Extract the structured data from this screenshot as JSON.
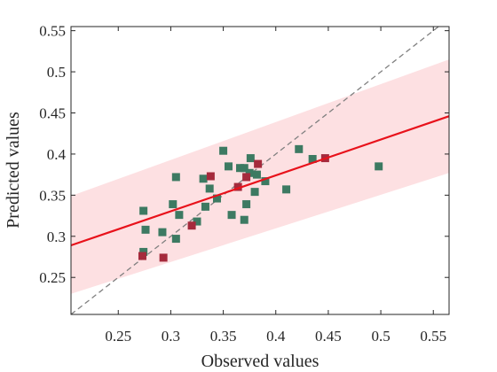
{
  "chart_data": {
    "type": "scatter",
    "title": "",
    "xlabel": "Observed values",
    "ylabel": "Predicted values",
    "xlim": [
      0.205,
      0.565
    ],
    "ylim": [
      0.205,
      0.555
    ],
    "xticks": [
      0.25,
      0.3,
      0.35,
      0.4,
      0.45,
      0.5,
      0.55
    ],
    "xtick_labels": [
      "0.25",
      "0.3",
      "0.35",
      "0.4",
      "0.45",
      "0.5",
      "0.55"
    ],
    "yticks": [
      0.25,
      0.3,
      0.35,
      0.4,
      0.45,
      0.5,
      0.55
    ],
    "ytick_labels": [
      "0.25",
      "0.3",
      "0.35",
      "0.4",
      "0.45",
      "0.5",
      "0.55"
    ],
    "grid": false,
    "legend": "none",
    "series": [
      {
        "marker": "square",
        "color": "#3d7a62",
        "points": [
          [
            0.274,
            0.331
          ],
          [
            0.274,
            0.281
          ],
          [
            0.276,
            0.308
          ],
          [
            0.292,
            0.305
          ],
          [
            0.302,
            0.339
          ],
          [
            0.305,
            0.297
          ],
          [
            0.305,
            0.372
          ],
          [
            0.308,
            0.326
          ],
          [
            0.325,
            0.318
          ],
          [
            0.331,
            0.37
          ],
          [
            0.333,
            0.336
          ],
          [
            0.337,
            0.358
          ],
          [
            0.344,
            0.346
          ],
          [
            0.35,
            0.404
          ],
          [
            0.355,
            0.385
          ],
          [
            0.358,
            0.326
          ],
          [
            0.366,
            0.383
          ],
          [
            0.37,
            0.383
          ],
          [
            0.37,
            0.32
          ],
          [
            0.372,
            0.339
          ],
          [
            0.375,
            0.377
          ],
          [
            0.376,
            0.395
          ],
          [
            0.38,
            0.354
          ],
          [
            0.382,
            0.375
          ],
          [
            0.39,
            0.367
          ],
          [
            0.41,
            0.357
          ],
          [
            0.422,
            0.406
          ],
          [
            0.435,
            0.394
          ],
          [
            0.498,
            0.385
          ]
        ]
      },
      {
        "marker": "square",
        "color": "#a52a3c",
        "points": [
          [
            0.273,
            0.276
          ],
          [
            0.293,
            0.274
          ],
          [
            0.32,
            0.313
          ],
          [
            0.338,
            0.373
          ],
          [
            0.364,
            0.36
          ],
          [
            0.372,
            0.372
          ],
          [
            0.383,
            0.388
          ],
          [
            0.447,
            0.395
          ]
        ]
      }
    ],
    "fit_line": {
      "color": "#e8121b",
      "points": [
        [
          0.205,
          0.289
        ],
        [
          0.565,
          0.446
        ]
      ]
    },
    "confidence_band": {
      "color": "#fde0e2",
      "upper": [
        [
          0.205,
          0.349
        ],
        [
          0.565,
          0.515
        ]
      ],
      "lower": [
        [
          0.205,
          0.23
        ],
        [
          0.565,
          0.377
        ]
      ]
    },
    "reference_line": {
      "style": "dashed",
      "color": "#808080",
      "points": [
        [
          0.205,
          0.205
        ],
        [
          0.555,
          0.555
        ]
      ]
    }
  }
}
